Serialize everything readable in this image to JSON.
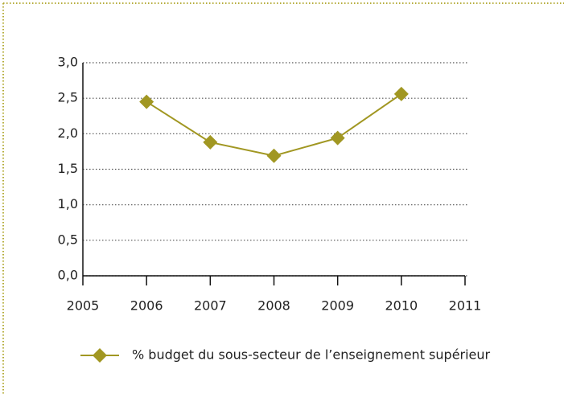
{
  "chart_data": {
    "type": "line",
    "x": [
      2006,
      2007,
      2008,
      2009,
      2010
    ],
    "series": [
      {
        "name": "% budget du sous-secteur de l’enseignement supérieur",
        "color": "#a19722",
        "values": [
          2.45,
          1.88,
          1.69,
          1.94,
          2.56
        ]
      }
    ],
    "xlim": [
      2005,
      2011
    ],
    "xticks": [
      2005,
      2006,
      2007,
      2008,
      2009,
      2010,
      2011
    ],
    "ylim": [
      0,
      3
    ],
    "yticks": [
      {
        "value": 0,
        "label": "0,0"
      },
      {
        "value": 0.5,
        "label": "0,5"
      },
      {
        "value": 1,
        "label": "1,0"
      },
      {
        "value": 1.5,
        "label": "1,5"
      },
      {
        "value": 2,
        "label": "2,0"
      },
      {
        "value": 2.5,
        "label": "2,5"
      },
      {
        "value": 3,
        "label": "3,0"
      }
    ],
    "grid": true
  }
}
